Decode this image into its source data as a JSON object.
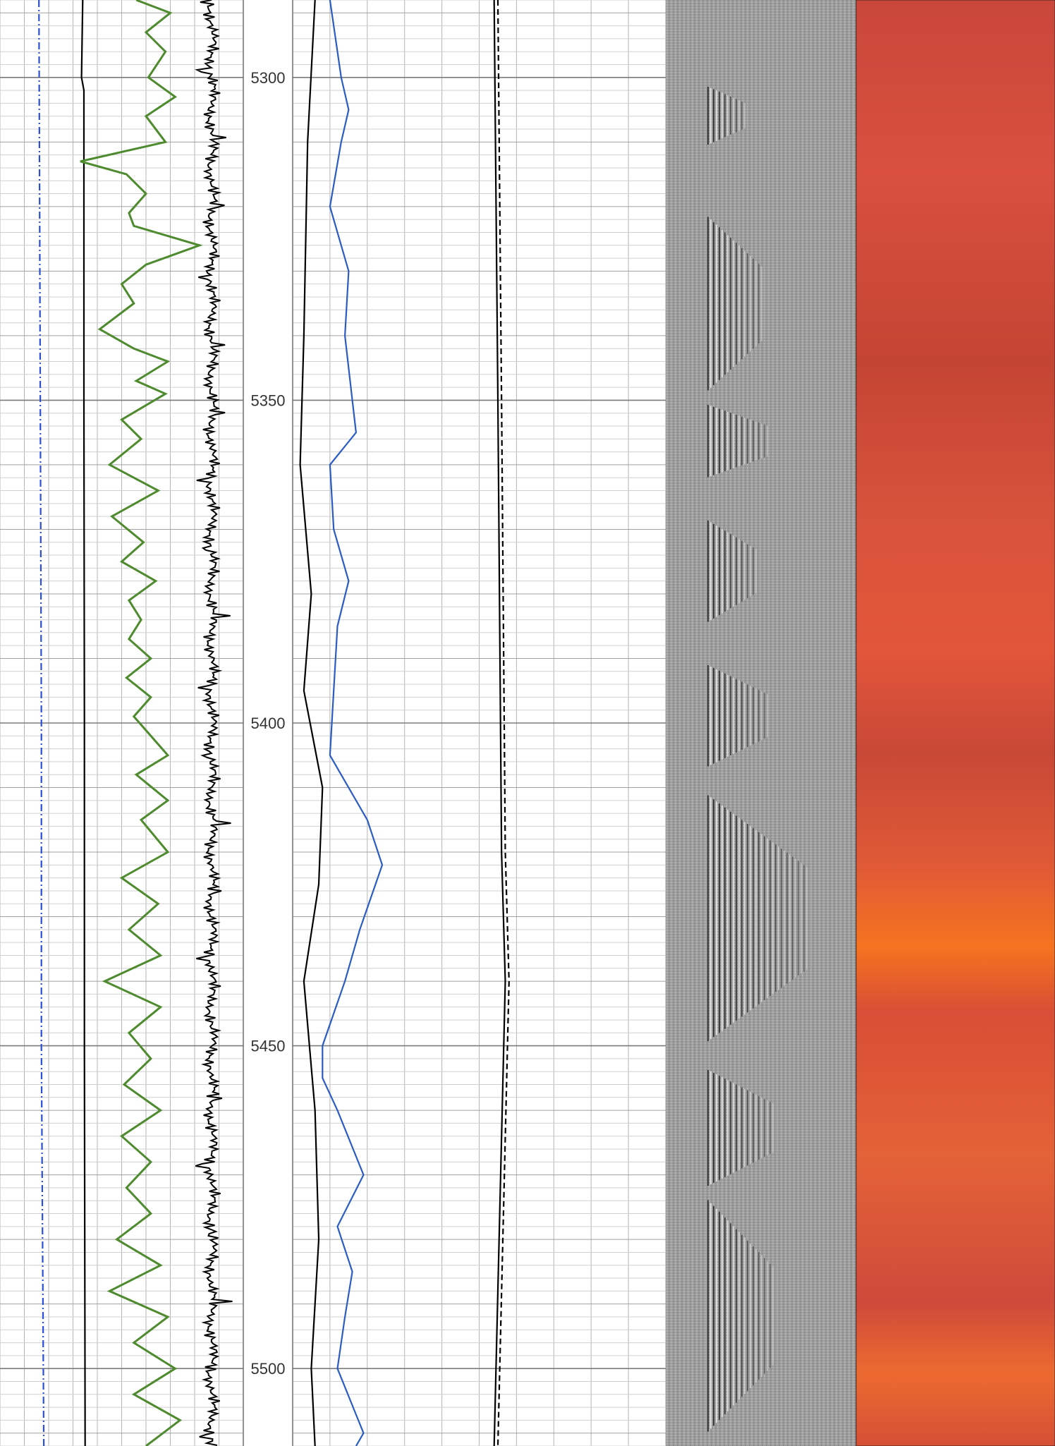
{
  "chart_data": {
    "type": "line",
    "subtype": "well-log",
    "depth_range": [
      5288,
      5512
    ],
    "depth_ticks": [
      5300,
      5350,
      5400,
      5450,
      5500
    ],
    "grid": true,
    "tracks": [
      {
        "name": "",
        "curves": [
          {
            "name": "",
            "color": "#2b4fd8",
            "style": "dash-dot",
            "points": [
              [
                5288,
                0.16
              ],
              [
                5400,
                0.17
              ],
              [
                5450,
                0.17
              ],
              [
                5512,
                0.18
              ]
            ]
          },
          {
            "name": "",
            "color": "#000000",
            "style": "solid",
            "points": [
              [
                5288,
                0.34
              ],
              [
                5300,
                0.335
              ],
              [
                5302,
                0.345
              ],
              [
                5350,
                0.345
              ],
              [
                5400,
                0.347
              ],
              [
                5450,
                0.347
              ],
              [
                5512,
                0.35
              ]
            ]
          },
          {
            "name": "",
            "color": "#4e8a2e",
            "style": "solid",
            "points": [
              [
                5288,
                0.56
              ],
              [
                5290,
                0.7
              ],
              [
                5293,
                0.6
              ],
              [
                5296,
                0.68
              ],
              [
                5300,
                0.61
              ],
              [
                5303,
                0.72
              ],
              [
                5306,
                0.6
              ],
              [
                5310,
                0.68
              ],
              [
                5313,
                0.33
              ],
              [
                5315,
                0.52
              ],
              [
                5318,
                0.6
              ],
              [
                5321,
                0.53
              ],
              [
                5323,
                0.55
              ],
              [
                5326,
                0.82
              ],
              [
                5329,
                0.6
              ],
              [
                5332,
                0.5
              ],
              [
                5335,
                0.55
              ],
              [
                5339,
                0.41
              ],
              [
                5342,
                0.55
              ],
              [
                5344,
                0.69
              ],
              [
                5347,
                0.56
              ],
              [
                5349,
                0.68
              ],
              [
                5353,
                0.5
              ],
              [
                5356,
                0.58
              ],
              [
                5360,
                0.45
              ],
              [
                5364,
                0.65
              ],
              [
                5368,
                0.46
              ],
              [
                5372,
                0.59
              ],
              [
                5375,
                0.5
              ],
              [
                5378,
                0.64
              ],
              [
                5381,
                0.53
              ],
              [
                5384,
                0.58
              ],
              [
                5387,
                0.53
              ],
              [
                5390,
                0.62
              ],
              [
                5393,
                0.52
              ],
              [
                5396,
                0.62
              ],
              [
                5399,
                0.55
              ],
              [
                5402,
                0.62
              ],
              [
                5405,
                0.69
              ],
              [
                5408,
                0.56
              ],
              [
                5412,
                0.69
              ],
              [
                5415,
                0.58
              ],
              [
                5420,
                0.69
              ],
              [
                5424,
                0.5
              ],
              [
                5428,
                0.65
              ],
              [
                5432,
                0.53
              ],
              [
                5436,
                0.66
              ],
              [
                5440,
                0.43
              ],
              [
                5444,
                0.66
              ],
              [
                5448,
                0.53
              ],
              [
                5452,
                0.62
              ],
              [
                5456,
                0.51
              ],
              [
                5460,
                0.66
              ],
              [
                5464,
                0.5
              ],
              [
                5468,
                0.62
              ],
              [
                5472,
                0.52
              ],
              [
                5476,
                0.62
              ],
              [
                5480,
                0.48
              ],
              [
                5484,
                0.66
              ],
              [
                5488,
                0.45
              ],
              [
                5492,
                0.69
              ],
              [
                5496,
                0.55
              ],
              [
                5500,
                0.72
              ],
              [
                5504,
                0.55
              ],
              [
                5508,
                0.74
              ],
              [
                5512,
                0.6
              ]
            ]
          },
          {
            "name": "",
            "color": "#000000",
            "style": "noisy",
            "points": [
              [
                5288,
                0.87
              ],
              [
                5400,
                0.88
              ],
              [
                5512,
                0.87
              ]
            ]
          }
        ]
      },
      {
        "name": "",
        "curves": [
          {
            "name": "",
            "color": "#000000",
            "style": "solid",
            "points": [
              [
                5288,
                0.06
              ],
              [
                5310,
                0.04
              ],
              [
                5340,
                0.03
              ],
              [
                5360,
                0.02
              ],
              [
                5380,
                0.05
              ],
              [
                5395,
                0.03
              ],
              [
                5410,
                0.08
              ],
              [
                5425,
                0.07
              ],
              [
                5440,
                0.03
              ],
              [
                5460,
                0.06
              ],
              [
                5480,
                0.07
              ],
              [
                5500,
                0.05
              ],
              [
                5512,
                0.06
              ]
            ]
          },
          {
            "name": "",
            "color": "#2b5cc4",
            "style": "solid",
            "points": [
              [
                5288,
                0.1
              ],
              [
                5300,
                0.13
              ],
              [
                5305,
                0.15
              ],
              [
                5310,
                0.13
              ],
              [
                5320,
                0.1
              ],
              [
                5330,
                0.15
              ],
              [
                5340,
                0.14
              ],
              [
                5350,
                0.16
              ],
              [
                5355,
                0.17
              ],
              [
                5360,
                0.1
              ],
              [
                5370,
                0.11
              ],
              [
                5378,
                0.15
              ],
              [
                5385,
                0.12
              ],
              [
                5395,
                0.11
              ],
              [
                5405,
                0.1
              ],
              [
                5415,
                0.2
              ],
              [
                5422,
                0.24
              ],
              [
                5432,
                0.18
              ],
              [
                5440,
                0.14
              ],
              [
                5450,
                0.08
              ],
              [
                5455,
                0.08
              ],
              [
                5460,
                0.12
              ],
              [
                5470,
                0.19
              ],
              [
                5478,
                0.12
              ],
              [
                5485,
                0.16
              ],
              [
                5492,
                0.14
              ],
              [
                5500,
                0.12
              ],
              [
                5510,
                0.19
              ],
              [
                5512,
                0.17
              ]
            ]
          },
          {
            "name": "",
            "color": "#000000",
            "style": "solid",
            "points": [
              [
                5288,
                0.54
              ],
              [
                5350,
                0.55
              ],
              [
                5420,
                0.56
              ],
              [
                5440,
                0.57
              ],
              [
                5512,
                0.54
              ]
            ]
          },
          {
            "name": "",
            "color": "#000000",
            "style": "dashed",
            "points": [
              [
                5288,
                0.55
              ],
              [
                5350,
                0.56
              ],
              [
                5420,
                0.57
              ],
              [
                5440,
                0.58
              ],
              [
                5512,
                0.55
              ]
            ]
          }
        ]
      },
      {
        "name": "",
        "image": "grey-wavetrain",
        "color": "#9a9a9a"
      },
      {
        "name": "",
        "image": "orange-heatmap",
        "color_low": "#c24a38",
        "color_high": "#f5731f"
      }
    ]
  }
}
